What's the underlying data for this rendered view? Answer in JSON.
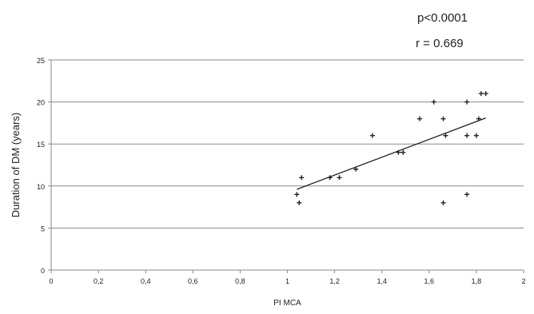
{
  "chart_data": {
    "type": "scatter",
    "title": "",
    "xlabel": "PI MCA",
    "ylabel": "Duration of DM (years)",
    "xlim": [
      0,
      2
    ],
    "ylim": [
      0,
      25
    ],
    "x_ticks": [
      0,
      0.2,
      0.4,
      0.6,
      0.8,
      1,
      1.2,
      1.4,
      1.6,
      1.8,
      2
    ],
    "x_tick_labels": [
      "0",
      "0,2",
      "0,4",
      "0,6",
      "0,8",
      "1",
      "1,2",
      "1,4",
      "1,6",
      "1,8",
      "2"
    ],
    "y_ticks": [
      0,
      5,
      10,
      15,
      20,
      25
    ],
    "y_tick_labels": [
      "0",
      "5",
      "10",
      "15",
      "20",
      "25"
    ],
    "grid": "horizontal",
    "legend": "none",
    "points": [
      {
        "x": 1.04,
        "y": 9
      },
      {
        "x": 1.05,
        "y": 8
      },
      {
        "x": 1.06,
        "y": 11
      },
      {
        "x": 1.18,
        "y": 11
      },
      {
        "x": 1.22,
        "y": 11
      },
      {
        "x": 1.29,
        "y": 12
      },
      {
        "x": 1.36,
        "y": 16
      },
      {
        "x": 1.47,
        "y": 14
      },
      {
        "x": 1.49,
        "y": 14
      },
      {
        "x": 1.56,
        "y": 18
      },
      {
        "x": 1.62,
        "y": 20
      },
      {
        "x": 1.66,
        "y": 18
      },
      {
        "x": 1.67,
        "y": 16
      },
      {
        "x": 1.66,
        "y": 8
      },
      {
        "x": 1.76,
        "y": 20
      },
      {
        "x": 1.76,
        "y": 16
      },
      {
        "x": 1.76,
        "y": 9
      },
      {
        "x": 1.8,
        "y": 16
      },
      {
        "x": 1.81,
        "y": 18
      },
      {
        "x": 1.82,
        "y": 21
      },
      {
        "x": 1.84,
        "y": 21
      }
    ],
    "trendline": {
      "x": [
        1.04,
        1.84
      ],
      "y": [
        9.6,
        18.1
      ]
    },
    "annotations": [
      "p<0.0001",
      "r = 0.669"
    ],
    "colors": {
      "points": "#222222",
      "trendline": "#222222",
      "grid": "#8a8a8a",
      "axis": "#8a8a8a",
      "text": "#222222"
    }
  }
}
